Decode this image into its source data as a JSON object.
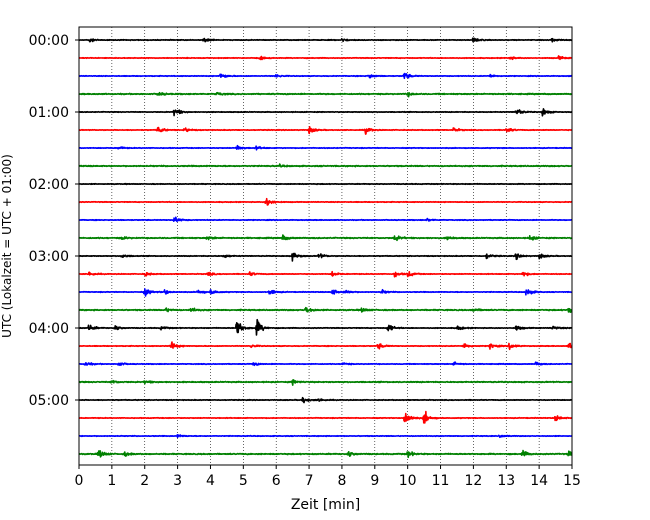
{
  "chart_data": {
    "type": "line",
    "subtype": "helicorder",
    "xlabel": "Zeit  [min]",
    "ylabel": "UTC (Lokalzeit = UTC + 01:00)",
    "xlim": [
      0,
      15
    ],
    "x_ticks": [
      0,
      1,
      2,
      3,
      4,
      5,
      6,
      7,
      8,
      9,
      10,
      11,
      12,
      13,
      14,
      15
    ],
    "x_tick_labels": [
      "0",
      "1",
      "2",
      "3",
      "4",
      "5",
      "6",
      "7",
      "8",
      "9",
      "10",
      "11",
      "12",
      "13",
      "14",
      "15"
    ],
    "y_tick_labels": [
      "00:00",
      "01:00",
      "02:00",
      "03:00",
      "04:00",
      "05:00"
    ],
    "y_tick_rows": [
      0,
      4,
      8,
      12,
      16,
      20
    ],
    "grid": "vertical-dotted",
    "colors": [
      "#000000",
      "#ff0000",
      "#0000ff",
      "#008000"
    ],
    "line_minutes": 15,
    "traces": [
      {
        "start": "00:00",
        "events": [
          [
            0.3,
            0.5
          ],
          [
            3.8,
            0.5
          ],
          [
            8.0,
            0.3
          ],
          [
            12.0,
            0.45
          ],
          [
            14.4,
            0.3
          ]
        ]
      },
      {
        "start": "00:15",
        "events": [
          [
            5.5,
            0.3
          ],
          [
            13.1,
            0.3
          ],
          [
            14.6,
            0.35
          ]
        ]
      },
      {
        "start": "00:30",
        "events": [
          [
            4.3,
            0.6
          ],
          [
            6.0,
            0.35
          ],
          [
            8.8,
            0.55
          ],
          [
            9.9,
            0.7
          ],
          [
            12.5,
            0.3
          ]
        ]
      },
      {
        "start": "00:45",
        "events": [
          [
            2.4,
            0.4
          ],
          [
            4.2,
            0.3
          ],
          [
            10.0,
            0.35
          ]
        ]
      },
      {
        "start": "01:00",
        "events": [
          [
            2.9,
            0.9
          ],
          [
            13.3,
            0.8
          ],
          [
            14.1,
            0.8
          ]
        ]
      },
      {
        "start": "01:15",
        "events": [
          [
            2.4,
            0.7
          ],
          [
            3.2,
            0.5
          ],
          [
            7.0,
            0.7
          ],
          [
            8.7,
            0.7
          ],
          [
            11.4,
            0.45
          ],
          [
            13.0,
            0.6
          ]
        ]
      },
      {
        "start": "01:30",
        "events": [
          [
            1.2,
            0.3
          ],
          [
            4.8,
            0.55
          ],
          [
            5.4,
            0.35
          ]
        ]
      },
      {
        "start": "01:45",
        "events": [
          [
            6.1,
            0.2
          ]
        ]
      },
      {
        "start": "02:00",
        "events": []
      },
      {
        "start": "02:15",
        "events": [
          [
            5.7,
            1.1
          ]
        ]
      },
      {
        "start": "02:30",
        "events": [
          [
            2.9,
            0.6
          ],
          [
            10.6,
            0.3
          ]
        ]
      },
      {
        "start": "02:45",
        "events": [
          [
            1.3,
            0.3
          ],
          [
            3.9,
            0.35
          ],
          [
            6.2,
            0.5
          ],
          [
            9.6,
            0.6
          ],
          [
            11.2,
            0.3
          ],
          [
            13.7,
            0.55
          ]
        ]
      },
      {
        "start": "03:00",
        "events": [
          [
            1.3,
            0.4
          ],
          [
            4.4,
            0.35
          ],
          [
            6.5,
            0.9
          ],
          [
            7.3,
            0.5
          ],
          [
            12.4,
            0.5
          ],
          [
            13.3,
            0.6
          ],
          [
            14.0,
            0.55
          ]
        ]
      },
      {
        "start": "03:15",
        "events": [
          [
            0.3,
            0.45
          ],
          [
            2.0,
            0.4
          ],
          [
            3.9,
            0.4
          ],
          [
            5.2,
            0.4
          ],
          [
            7.7,
            0.5
          ],
          [
            9.6,
            0.55
          ],
          [
            10.0,
            0.65
          ],
          [
            13.5,
            0.55
          ]
        ]
      },
      {
        "start": "03:30",
        "events": [
          [
            2.0,
            0.75
          ],
          [
            2.6,
            0.5
          ],
          [
            3.6,
            0.6
          ],
          [
            4.0,
            0.5
          ],
          [
            5.8,
            0.6
          ],
          [
            7.7,
            0.6
          ],
          [
            8.1,
            0.45
          ],
          [
            9.2,
            0.4
          ],
          [
            13.6,
            0.9
          ]
        ]
      },
      {
        "start": "03:45",
        "events": [
          [
            2.6,
            0.5
          ],
          [
            3.4,
            0.45
          ],
          [
            6.9,
            0.7
          ],
          [
            8.6,
            0.4
          ],
          [
            12.0,
            0.4
          ],
          [
            14.9,
            0.75
          ]
        ]
      },
      {
        "start": "04:00",
        "events": [
          [
            0.3,
            0.7
          ],
          [
            1.1,
            0.45
          ],
          [
            2.5,
            0.35
          ],
          [
            4.8,
            1.8
          ],
          [
            5.4,
            1.6
          ],
          [
            9.4,
            0.8
          ],
          [
            11.5,
            0.5
          ],
          [
            13.3,
            0.5
          ],
          [
            14.4,
            0.5
          ]
        ]
      },
      {
        "start": "04:15",
        "events": [
          [
            2.8,
            0.9
          ],
          [
            5.2,
            0.4
          ],
          [
            9.1,
            0.6
          ],
          [
            11.7,
            0.6
          ],
          [
            12.5,
            0.6
          ],
          [
            13.1,
            0.7
          ],
          [
            14.9,
            0.55
          ]
        ]
      },
      {
        "start": "04:30",
        "events": [
          [
            0.2,
            0.5
          ],
          [
            1.2,
            0.4
          ],
          [
            5.3,
            0.35
          ],
          [
            8.0,
            0.3
          ],
          [
            11.4,
            0.35
          ],
          [
            13.9,
            0.35
          ]
        ]
      },
      {
        "start": "04:45",
        "events": [
          [
            1.0,
            0.35
          ],
          [
            2.0,
            0.3
          ],
          [
            6.5,
            0.45
          ]
        ]
      },
      {
        "start": "05:00",
        "events": [
          [
            6.8,
            0.7
          ],
          [
            7.3,
            0.3
          ]
        ]
      },
      {
        "start": "05:15",
        "events": [
          [
            9.9,
            1.6
          ],
          [
            10.5,
            1.3
          ],
          [
            14.5,
            0.6
          ]
        ]
      },
      {
        "start": "05:30",
        "events": [
          [
            3.0,
            0.25
          ],
          [
            12.8,
            0.25
          ]
        ]
      },
      {
        "start": "05:45",
        "events": [
          [
            0.6,
            0.9
          ],
          [
            1.4,
            0.4
          ],
          [
            8.2,
            0.5
          ],
          [
            10.0,
            0.6
          ],
          [
            13.5,
            0.6
          ],
          [
            14.9,
            0.5
          ]
        ]
      }
    ]
  }
}
